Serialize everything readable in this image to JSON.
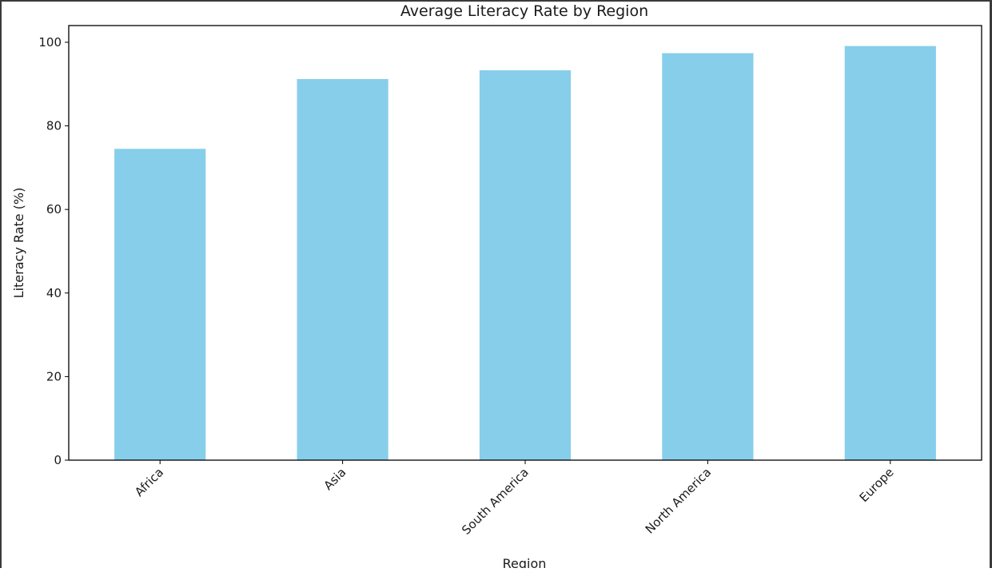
{
  "chart_data": {
    "type": "bar",
    "title": "Average Literacy Rate by Region",
    "xlabel": "Region",
    "ylabel": "Literacy Rate (%)",
    "categories": [
      "Africa",
      "Asia",
      "South America",
      "North America",
      "Europe"
    ],
    "values": [
      74.5,
      91.2,
      93.3,
      97.4,
      99.1
    ],
    "ylim": [
      0,
      104
    ],
    "yticks": [
      0,
      20,
      40,
      60,
      80,
      100
    ],
    "bar_color": "#87ceeb",
    "grid": false,
    "legend": "none"
  }
}
